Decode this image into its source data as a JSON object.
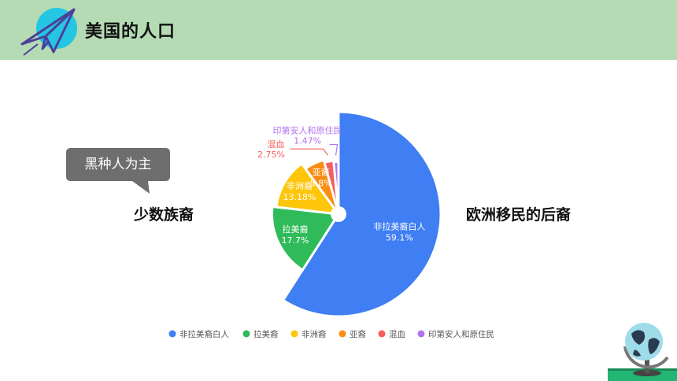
{
  "header": {
    "title": "美国的人口",
    "bg": "#b5dbb4",
    "logo_icon": "paper-plane-icon"
  },
  "callout": {
    "text": "黑种人为主",
    "color": "#6e6e6e"
  },
  "labels": {
    "left": "少数族裔",
    "right": "欧洲移民的后裔"
  },
  "chart_data": {
    "type": "pie",
    "style": "rose",
    "legend_position": "bottom",
    "slices": [
      {
        "name": "非拉美裔白人",
        "value": 59.1,
        "label": "59.1%",
        "color": "#3f7ef3"
      },
      {
        "name": "拉美裔",
        "value": 17.7,
        "label": "17.7%",
        "color": "#2fbb59"
      },
      {
        "name": "非洲裔",
        "value": 13.18,
        "label": "13.18%",
        "color": "#fdc60a"
      },
      {
        "name": "亚裔",
        "value": 5.8,
        "label": "5.8%",
        "color": "#f88e12"
      },
      {
        "name": "混血",
        "value": 2.75,
        "label": "2.75%",
        "color": "#f65e5e"
      },
      {
        "name": "印第安人和原住民",
        "value": 1.47,
        "label": "1.47%",
        "color": "#b273f0"
      }
    ],
    "legend": [
      "非拉美裔白人",
      "拉美裔",
      "非洲裔",
      "亚裔",
      "混血",
      "印第安人和原住民"
    ]
  },
  "decor": {
    "globe_icon": "globe-icon"
  }
}
